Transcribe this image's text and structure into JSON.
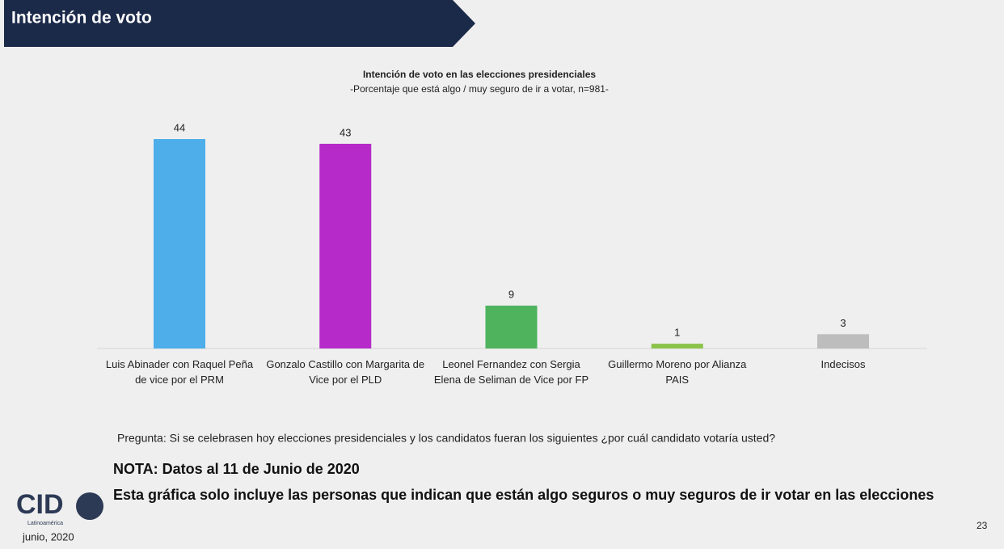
{
  "slide": {
    "header": "Intención de voto",
    "question": "Pregunta: Si se celebrasen hoy elecciones presidenciales y los candidatos fueran los siguientes ¿por cuál candidato votaría usted?",
    "note_title": "NOTA: Datos al 11 de Junio de 2020",
    "note_text": "Esta gráfica solo incluye las personas que indican que están algo seguros o muy seguros de ir votar en las elecciones",
    "logo": "CID",
    "logo_sub": "Latinoamérica",
    "date": "junio, 2020",
    "page": "23"
  },
  "chart_data": {
    "type": "bar",
    "title": "Intención de voto en las elecciones presidenciales",
    "subtitle": "-Porcentaje que está algo / muy seguro de ir a votar, n=981-",
    "categories": [
      "Luis Abinader con Raquel Peña de vice por el PRM",
      "Gonzalo Castillo con Margarita de Vice por el PLD",
      "Leonel Fernandez con Sergia Elena de Seliman de Vice por FP",
      "Guillermo Moreno por Alianza PAIS",
      "Indecisos"
    ],
    "values": [
      44,
      43,
      9,
      1,
      3
    ],
    "colors": [
      "#4daeea",
      "#b52ac8",
      "#4fb35e",
      "#8bc34a",
      "#bdbdbd"
    ]
  }
}
